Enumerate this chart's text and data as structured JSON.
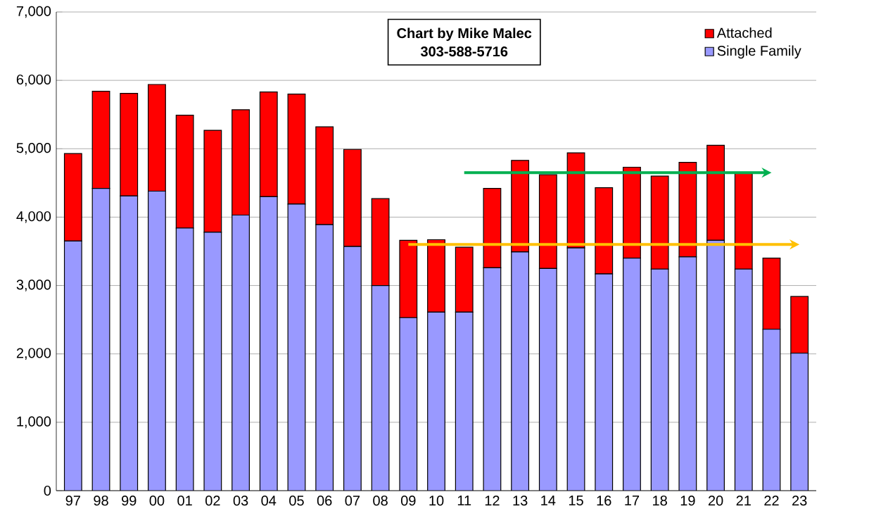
{
  "chart_data": {
    "type": "bar",
    "stacked": true,
    "categories": [
      "97",
      "98",
      "99",
      "00",
      "01",
      "02",
      "03",
      "04",
      "05",
      "06",
      "07",
      "08",
      "09",
      "10",
      "11",
      "12",
      "13",
      "14",
      "15",
      "16",
      "17",
      "18",
      "19",
      "20",
      "21",
      "22",
      "23"
    ],
    "series": [
      {
        "name": "Single Family",
        "color": "#9999ff",
        "values": [
          3650,
          4420,
          4310,
          4380,
          3840,
          3780,
          4030,
          4300,
          4190,
          3890,
          3570,
          3000,
          2530,
          2610,
          2610,
          3260,
          3490,
          3250,
          3550,
          3170,
          3400,
          3240,
          3420,
          3660,
          3240,
          2360,
          2010
        ]
      },
      {
        "name": "Attached",
        "color": "#ff0000",
        "values": [
          1280,
          1420,
          1500,
          1560,
          1650,
          1490,
          1540,
          1530,
          1610,
          1430,
          1420,
          1270,
          1130,
          1060,
          950,
          1160,
          1340,
          1370,
          1390,
          1260,
          1330,
          1360,
          1380,
          1390,
          1400,
          1040,
          830
        ]
      },
      {
        "type": "line",
        "color": "#00b050",
        "x": [
          "11",
          "22"
        ],
        "values": [
          4650,
          4650
        ]
      },
      {
        "type": "line",
        "color": "#ffc000",
        "x": [
          "09",
          "23"
        ],
        "values": [
          3600,
          3600
        ]
      }
    ],
    "ylim": [
      0,
      7000
    ],
    "yticks": [
      0,
      {
        "value": 1000,
        "label": "1,000"
      },
      {
        "value": 2000,
        "label": "2,000"
      },
      {
        "value": 3000,
        "label": "3,000"
      },
      {
        "value": 4000,
        "label": "4,000"
      },
      {
        "value": 5000,
        "label": "5,000"
      },
      {
        "value": 6000,
        "label": "6,000"
      },
      {
        "value": 7000,
        "label": "7,000"
      }
    ],
    "grid": "y",
    "legend": "top right",
    "annotations": [
      "Chart by Mike Malec",
      "303-588-5716"
    ]
  }
}
